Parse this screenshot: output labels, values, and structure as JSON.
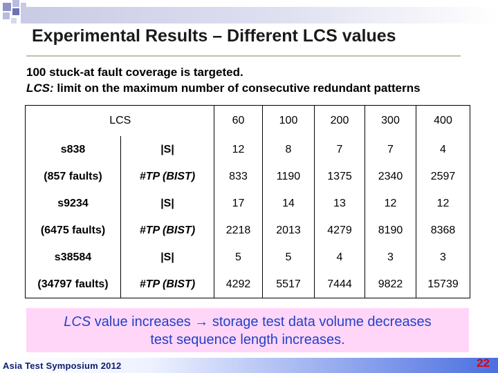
{
  "slide": {
    "title": "Experimental Results – Different LCS values",
    "intro_line1": "100 stuck-at fault coverage is targeted.",
    "intro_line2_term": "LCS:",
    "intro_line2_rest": " limit on the maximum number of consecutive redundant patterns"
  },
  "table": {
    "lcs_header": "LCS",
    "lcs_values": [
      "60",
      "100",
      "200",
      "300",
      "400"
    ],
    "circuits": [
      {
        "name": "s838",
        "faults": "(857 faults)",
        "rows": [
          {
            "metric": "|S|",
            "values": [
              "12",
              "8",
              "7",
              "7",
              "4"
            ]
          },
          {
            "metric": "#TP (BIST)",
            "values": [
              "833",
              "1190",
              "1375",
              "2340",
              "2597"
            ]
          }
        ]
      },
      {
        "name": "s9234",
        "faults": "(6475 faults)",
        "rows": [
          {
            "metric": "|S|",
            "values": [
              "17",
              "14",
              "13",
              "12",
              "12"
            ]
          },
          {
            "metric": "#TP (BIST)",
            "values": [
              "2218",
              "2013",
              "4279",
              "8190",
              "8368"
            ]
          }
        ]
      },
      {
        "name": "s38584",
        "faults": "(34797 faults)",
        "rows": [
          {
            "metric": "|S|",
            "values": [
              "5",
              "5",
              "4",
              "3",
              "3"
            ]
          },
          {
            "metric": "#TP (BIST)",
            "values": [
              "4292",
              "5517",
              "7444",
              "9822",
              "15739"
            ]
          }
        ]
      }
    ]
  },
  "conclusion": {
    "term": "LCS",
    "line1_rest": " value increases → storage test data volume decreases",
    "line2": "test sequence length increases."
  },
  "footer": {
    "event": "Asia Test Symposium 2012",
    "page": "22"
  },
  "colors": {
    "conclusion_bg": "#ffd6f8",
    "conclusion_text": "#2340c8",
    "page_number": "#e00000",
    "footer_text": "#0a1b6e"
  }
}
